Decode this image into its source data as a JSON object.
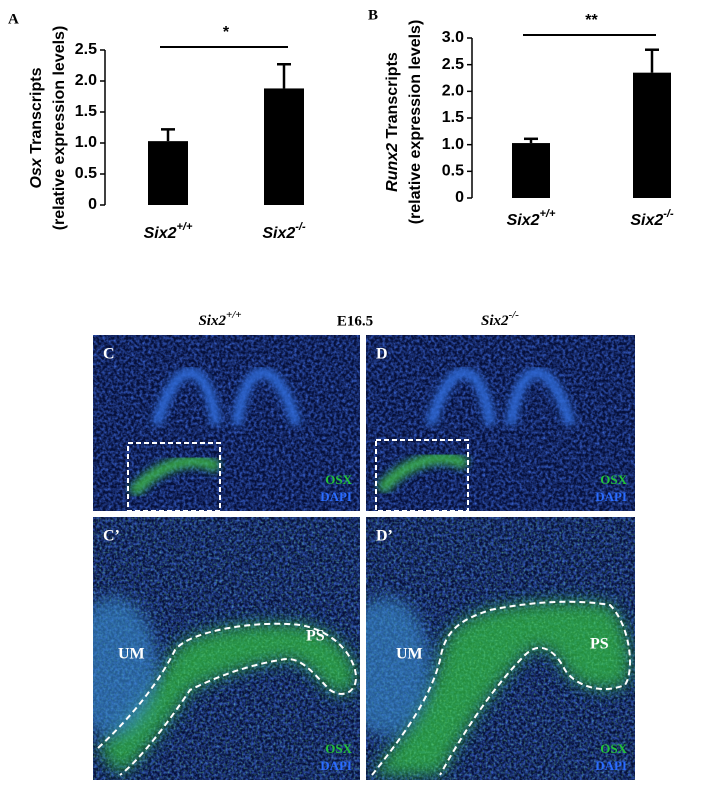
{
  "chart_data": [
    {
      "type": "bar",
      "panel": "A",
      "ylabel": [
        "Osx Transcripts",
        "(relative expression levels)"
      ],
      "categories": [
        "Six2+/+",
        "Six2-/-"
      ],
      "values": [
        1.03,
        1.88
      ],
      "errors": [
        0.19,
        0.39
      ],
      "color": "#000000",
      "ylim": [
        0,
        2.5
      ],
      "yticks": [
        0,
        0.5,
        {
          "value": 1,
          "label": "1.0"
        },
        1.5,
        {
          "value": 2,
          "label": "2.0"
        },
        2.5
      ],
      "grid": false,
      "annotation": "*"
    },
    {
      "type": "bar",
      "panel": "B",
      "ylabel": [
        "Runx2 Transcripts",
        "(relative expression levels)"
      ],
      "categories": [
        "Six2+/+",
        "Six2-/-"
      ],
      "values": [
        1.03,
        2.35
      ],
      "errors": [
        0.08,
        0.43
      ],
      "color": "#000000",
      "ylim": [
        0,
        3
      ],
      "yticks": [
        0,
        0.5,
        {
          "value": 1,
          "label": "1.0"
        },
        1.5,
        {
          "value": 2,
          "label": "2.0"
        },
        2.5,
        {
          "value": 3,
          "label": "3.0"
        }
      ],
      "grid": false,
      "annotation": "**"
    }
  ],
  "figure": {
    "header": {
      "left": "Six2+/+",
      "center": "E16.5",
      "right": "Six2-/-"
    },
    "panels": [
      {
        "label": "C",
        "stains": [
          "OSX",
          "DAPI"
        ]
      },
      {
        "label": "D",
        "stains": [
          "OSX",
          "DAPI"
        ]
      },
      {
        "label": "C’",
        "stains": [
          "OSX",
          "DAPI"
        ],
        "regions": [
          "UM",
          "PS"
        ]
      },
      {
        "label": "D’",
        "stains": [
          "OSX",
          "DAPI"
        ],
        "regions": [
          "UM",
          "PS"
        ]
      }
    ]
  }
}
